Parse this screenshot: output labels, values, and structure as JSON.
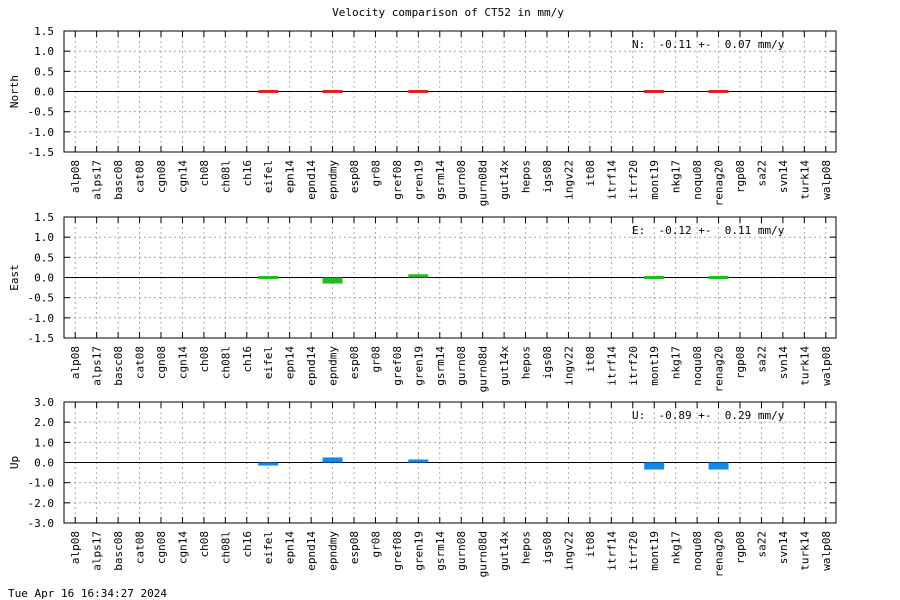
{
  "title": "Velocity comparison of CT52 in mm/y",
  "timestamp": "Tue Apr 16 16:34:27 2024",
  "chart_data": [
    {
      "type": "bar",
      "ylabel": "North",
      "ylim": [
        -1.5,
        1.5
      ],
      "yticks": [
        "1.5",
        "1.0",
        "0.5",
        "0.0",
        "-0.5",
        "-1.0",
        "-1.5"
      ],
      "annotation": "N:  -0.11 +-  0.07 mm/y",
      "color": "#dd2222",
      "grid": true,
      "categories": [
        "alp08",
        "alps17",
        "basc08",
        "cat08",
        "cgn08",
        "cgn14",
        "ch08",
        "ch08l",
        "ch16",
        "eifel",
        "epn14",
        "epnd14",
        "epndmy",
        "esp08",
        "gr08",
        "gref08",
        "gren19",
        "gsrm14",
        "gurn08",
        "gurn08d",
        "gut14x",
        "hepos",
        "igs08",
        "ingv22",
        "it08",
        "itrf14",
        "itrf20",
        "mont19",
        "nkg17",
        "noqu08",
        "renag20",
        "rgp08",
        "sa22",
        "svn14",
        "turk14",
        "walp08"
      ],
      "values": [
        null,
        null,
        null,
        null,
        null,
        null,
        null,
        null,
        null,
        -0.02,
        null,
        null,
        0.02,
        null,
        null,
        null,
        0.02,
        null,
        null,
        null,
        null,
        null,
        null,
        null,
        null,
        null,
        null,
        -0.05,
        null,
        null,
        -0.05,
        null,
        null,
        null,
        null,
        null
      ]
    },
    {
      "type": "bar",
      "ylabel": "East",
      "ylim": [
        -1.5,
        1.5
      ],
      "yticks": [
        "1.5",
        "1.0",
        "0.5",
        "0.0",
        "-0.5",
        "-1.0",
        "-1.5"
      ],
      "annotation": "E:  -0.12 +-  0.11 mm/y",
      "color": "#22bb22",
      "grid": true,
      "categories": [
        "alp08",
        "alps17",
        "basc08",
        "cat08",
        "cgn08",
        "cgn14",
        "ch08",
        "ch08l",
        "ch16",
        "eifel",
        "epn14",
        "epnd14",
        "epndmy",
        "esp08",
        "gr08",
        "gref08",
        "gren19",
        "gsrm14",
        "gurn08",
        "gurn08d",
        "gut14x",
        "hepos",
        "igs08",
        "ingv22",
        "it08",
        "itrf14",
        "itrf20",
        "mont19",
        "nkg17",
        "noqu08",
        "renag20",
        "rgp08",
        "sa22",
        "svn14",
        "turk14",
        "walp08"
      ],
      "values": [
        null,
        null,
        null,
        null,
        null,
        null,
        null,
        null,
        null,
        -0.06,
        null,
        null,
        -0.15,
        null,
        null,
        null,
        0.08,
        null,
        null,
        null,
        null,
        null,
        null,
        null,
        null,
        null,
        null,
        0.06,
        null,
        null,
        0.02,
        null,
        null,
        null,
        null,
        null
      ]
    },
    {
      "type": "bar",
      "ylabel": "Up",
      "ylim": [
        -3.0,
        3.0
      ],
      "yticks": [
        "3.0",
        "2.0",
        "1.0",
        "0.0",
        "-1.0",
        "-2.0",
        "-3.0"
      ],
      "annotation": "U:  -0.89 +-  0.29 mm/y",
      "color": "#1188ee",
      "grid": true,
      "categories": [
        "alp08",
        "alps17",
        "basc08",
        "cat08",
        "cgn08",
        "cgn14",
        "ch08",
        "ch08l",
        "ch16",
        "eifel",
        "epn14",
        "epnd14",
        "epndmy",
        "esp08",
        "gr08",
        "gref08",
        "gren19",
        "gsrm14",
        "gurn08",
        "gurn08d",
        "gut14x",
        "hepos",
        "igs08",
        "ingv22",
        "it08",
        "itrf14",
        "itrf20",
        "mont19",
        "nkg17",
        "noqu08",
        "renag20",
        "rgp08",
        "sa22",
        "svn14",
        "turk14",
        "walp08"
      ],
      "values": [
        null,
        null,
        null,
        null,
        null,
        null,
        null,
        null,
        null,
        -0.15,
        null,
        null,
        0.25,
        null,
        null,
        null,
        0.15,
        null,
        null,
        null,
        null,
        null,
        null,
        null,
        null,
        null,
        null,
        -0.35,
        null,
        null,
        -0.35,
        null,
        null,
        null,
        null,
        null
      ]
    }
  ]
}
